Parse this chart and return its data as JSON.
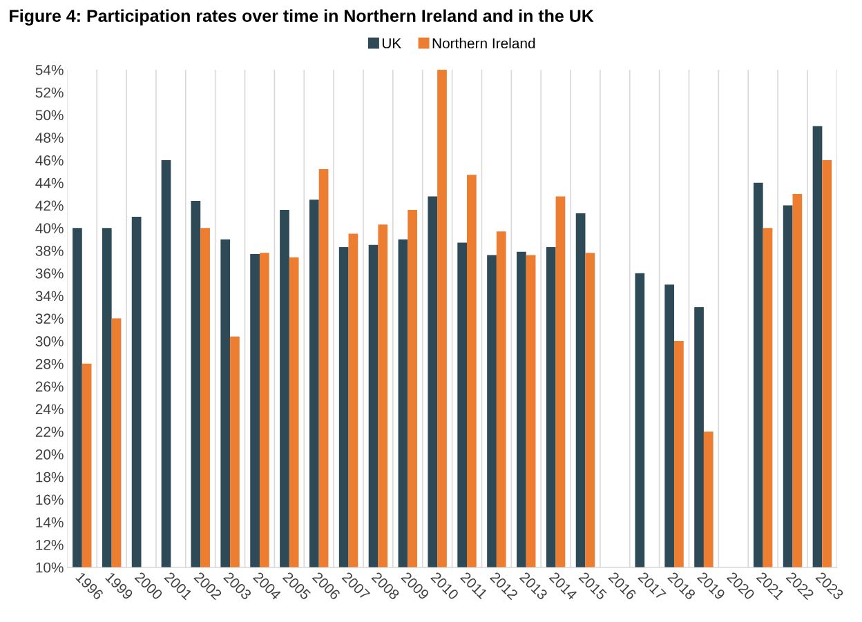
{
  "chart_data": {
    "type": "bar",
    "title": "Figure 4: Participation rates over time in Northern Ireland and in the UK",
    "categories": [
      "1996",
      "1999",
      "2000",
      "2001",
      "2002",
      "2003",
      "2004",
      "2005",
      "2006",
      "2007",
      "2008",
      "2009",
      "2010",
      "2011",
      "2012",
      "2013",
      "2014",
      "2015",
      "2016",
      "2017",
      "2018",
      "2019",
      "2020",
      "2021",
      "2022",
      "2023"
    ],
    "series": [
      {
        "name": "UK",
        "color": "#2e4a56",
        "values": [
          40,
          40,
          41,
          46,
          42.4,
          39,
          37.7,
          41.6,
          42.5,
          38.3,
          38.5,
          39,
          42.8,
          38.7,
          37.6,
          37.9,
          38.3,
          41.3,
          null,
          36,
          35,
          33,
          null,
          44,
          42,
          49
        ]
      },
      {
        "name": "Northern Ireland",
        "color": "#ed7d31",
        "values": [
          28,
          32,
          null,
          null,
          40,
          30.4,
          37.8,
          37.4,
          45.2,
          39.5,
          40.3,
          41.6,
          54,
          44.7,
          39.7,
          37.6,
          42.8,
          37.8,
          null,
          null,
          30,
          22,
          null,
          40,
          43,
          46
        ]
      }
    ],
    "ylim": [
      10,
      54
    ],
    "yticks": [
      {
        "value": 10,
        "label": "10%"
      },
      {
        "value": 12,
        "label": "12%"
      },
      {
        "value": 14,
        "label": "14%"
      },
      {
        "value": 16,
        "label": "16%"
      },
      {
        "value": 18,
        "label": "18%"
      },
      {
        "value": 20,
        "label": "20%"
      },
      {
        "value": 22,
        "label": "22%"
      },
      {
        "value": 24,
        "label": "24%"
      },
      {
        "value": 26,
        "label": "26%"
      },
      {
        "value": 28,
        "label": "28%"
      },
      {
        "value": 30,
        "label": "30%"
      },
      {
        "value": 32,
        "label": "32%"
      },
      {
        "value": 34,
        "label": "34%"
      },
      {
        "value": 36,
        "label": "36%"
      },
      {
        "value": 38,
        "label": "38%"
      },
      {
        "value": 40,
        "label": "40%"
      },
      {
        "value": 42,
        "label": "42%"
      },
      {
        "value": 44,
        "label": "44%"
      },
      {
        "value": 46,
        "label": "46%"
      },
      {
        "value": 48,
        "label": "48%"
      },
      {
        "value": 50,
        "label": "50%"
      },
      {
        "value": 52,
        "label": "52%"
      },
      {
        "value": 54,
        "label": "54%"
      }
    ],
    "grid": "x",
    "legend": "top"
  }
}
